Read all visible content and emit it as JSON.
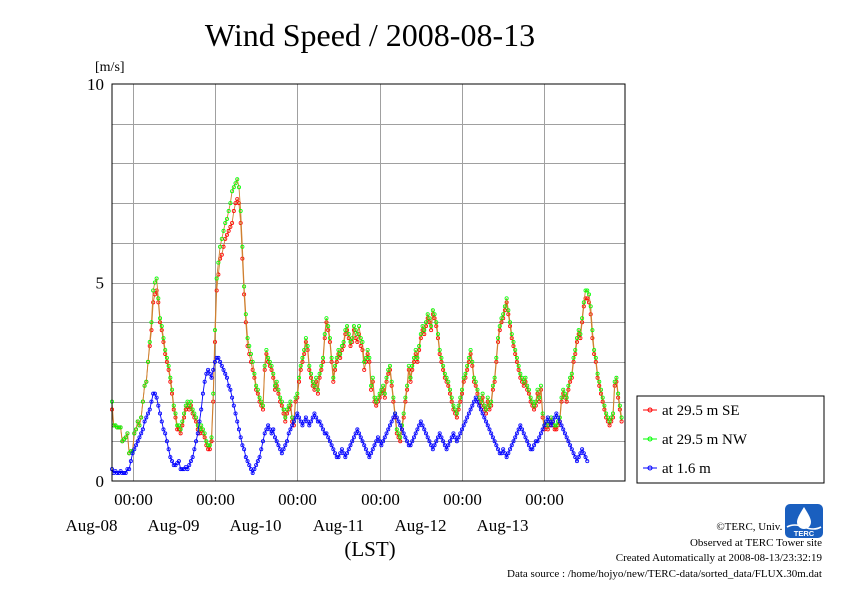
{
  "chart_data": {
    "type": "line",
    "title": "Wind Speed / 2008-08-13",
    "ylabel": "[m/s]",
    "xlabel": "(LST)",
    "ylim": [
      0,
      10
    ],
    "yticks": [
      "0",
      "5",
      "10"
    ],
    "x_start": "2008-08-07T18:00",
    "x_end": "2008-08-13T23:30",
    "sample_interval_hours": 0.5,
    "xtick_time_label": "00:00",
    "xticks": [
      "Aug-08",
      "Aug-09",
      "Aug-10",
      "Aug-11",
      "Aug-12",
      "Aug-13"
    ],
    "grid": true,
    "legend_position": "right",
    "series": [
      {
        "name": "at 29.5 m SE",
        "color": "#ff0000",
        "values": [
          1.8,
          1.4,
          1.4,
          1.35,
          1.35,
          1.35,
          1.0,
          1.05,
          1.1,
          1.2,
          0.7,
          0.75,
          0.75,
          1.2,
          1.3,
          1.5,
          1.4,
          1.6,
          2.0,
          2.4,
          2.5,
          3.0,
          3.4,
          3.8,
          4.5,
          4.7,
          4.8,
          4.5,
          4.0,
          3.8,
          3.5,
          3.2,
          3.0,
          2.8,
          2.5,
          2.2,
          1.8,
          1.6,
          1.3,
          1.3,
          1.2,
          1.4,
          1.6,
          1.8,
          1.9,
          1.8,
          1.9,
          1.7,
          1.6,
          1.5,
          1.3,
          1.2,
          1.3,
          1.2,
          1.1,
          0.9,
          0.8,
          0.8,
          1.0,
          2.0,
          3.5,
          4.8,
          5.2,
          5.6,
          5.7,
          5.9,
          6.1,
          6.2,
          6.3,
          6.4,
          6.5,
          6.8,
          7.0,
          7.1,
          7.0,
          6.5,
          5.6,
          4.7,
          4.0,
          3.4,
          3.2,
          3.0,
          2.8,
          2.6,
          2.3,
          2.2,
          2.0,
          1.9,
          1.8,
          2.8,
          3.2,
          3.0,
          2.9,
          2.8,
          2.6,
          2.3,
          2.4,
          2.2,
          2.0,
          1.9,
          1.7,
          1.5,
          1.7,
          1.8,
          1.9,
          1.5,
          1.4,
          2.0,
          2.1,
          2.5,
          2.8,
          3.0,
          3.2,
          3.5,
          3.3,
          2.8,
          2.6,
          2.4,
          2.3,
          2.5,
          2.2,
          2.6,
          2.8,
          3.0,
          3.6,
          4.0,
          3.8,
          3.5,
          3.0,
          2.5,
          2.8,
          3.0,
          3.2,
          3.1,
          3.3,
          3.4,
          3.7,
          3.8,
          3.6,
          3.4,
          3.5,
          3.8,
          3.6,
          3.5,
          3.7,
          3.4,
          3.3,
          2.8,
          3.0,
          3.2,
          3.0,
          2.3,
          2.5,
          2.0,
          1.9,
          2.0,
          2.1,
          2.2,
          2.3,
          2.1,
          2.5,
          2.7,
          2.8,
          2.4,
          2.0,
          1.6,
          1.2,
          1.1,
          1.0,
          1.3,
          1.6,
          2.0,
          2.3,
          2.8,
          2.5,
          2.8,
          3.0,
          3.2,
          3.0,
          3.3,
          3.6,
          3.8,
          3.7,
          3.9,
          4.1,
          4.0,
          3.8,
          4.2,
          4.1,
          3.9,
          3.6,
          3.2,
          3.0,
          2.8,
          2.6,
          2.5,
          2.4,
          2.2,
          2.0,
          1.8,
          1.7,
          1.6,
          1.8,
          2.0,
          2.2,
          2.5,
          2.6,
          2.8,
          3.0,
          3.2,
          2.9,
          2.5,
          2.4,
          2.2,
          2.0,
          1.9,
          2.1,
          1.8,
          1.7,
          2.0,
          1.8,
          1.9,
          2.3,
          2.5,
          3.0,
          3.5,
          3.8,
          4.0,
          4.1,
          4.3,
          4.5,
          4.2,
          3.9,
          3.6,
          3.4,
          3.2,
          3.0,
          2.8,
          2.6,
          2.5,
          2.4,
          2.5,
          2.3,
          2.2,
          2.0,
          1.9,
          1.8,
          1.9,
          2.2,
          2.0,
          2.3,
          1.6,
          1.3,
          1.4,
          1.3,
          1.4,
          1.5,
          1.4,
          1.3,
          1.3,
          1.4,
          1.5,
          2.0,
          2.2,
          2.1,
          2.0,
          2.3,
          2.5,
          2.6,
          3.0,
          3.2,
          3.5,
          3.7,
          3.6,
          4.0,
          4.4,
          4.6,
          4.6,
          4.5,
          4.2,
          3.6,
          3.2,
          3.0,
          2.6,
          2.4,
          2.2,
          2.0,
          1.8,
          1.6,
          1.5,
          1.4,
          1.5,
          1.6,
          2.4,
          2.5,
          2.1,
          1.8,
          1.5
        ]
      },
      {
        "name": "at 29.5 m NW",
        "color": "#00ff00",
        "values": [
          2.0,
          1.4,
          1.4,
          1.35,
          1.35,
          1.35,
          1.0,
          1.05,
          1.1,
          1.2,
          0.7,
          0.75,
          0.75,
          1.2,
          1.3,
          1.5,
          1.4,
          1.6,
          2.0,
          2.4,
          2.5,
          3.0,
          3.5,
          4.0,
          4.8,
          5.0,
          5.1,
          4.6,
          4.1,
          3.9,
          3.6,
          3.3,
          3.1,
          2.9,
          2.6,
          2.3,
          1.9,
          1.7,
          1.4,
          1.4,
          1.3,
          1.5,
          1.7,
          1.9,
          2.0,
          1.9,
          2.0,
          1.8,
          1.7,
          1.6,
          1.4,
          1.3,
          1.4,
          1.3,
          1.2,
          1.0,
          0.9,
          0.9,
          1.1,
          2.2,
          3.8,
          5.1,
          5.5,
          5.9,
          6.1,
          6.3,
          6.5,
          6.6,
          6.8,
          7.0,
          7.3,
          7.4,
          7.5,
          7.6,
          7.4,
          6.8,
          5.9,
          4.9,
          4.2,
          3.6,
          3.4,
          3.2,
          3.0,
          2.7,
          2.4,
          2.3,
          2.1,
          2.0,
          1.9,
          2.9,
          3.3,
          3.1,
          3.0,
          2.9,
          2.7,
          2.4,
          2.5,
          2.3,
          2.1,
          2.0,
          1.8,
          1.6,
          1.8,
          1.9,
          2.0,
          1.6,
          1.5,
          2.1,
          2.2,
          2.6,
          2.9,
          3.1,
          3.3,
          3.6,
          3.4,
          2.9,
          2.7,
          2.5,
          2.4,
          2.6,
          2.3,
          2.7,
          2.9,
          3.1,
          3.7,
          4.1,
          3.9,
          3.6,
          3.1,
          2.6,
          2.9,
          3.1,
          3.3,
          3.2,
          3.4,
          3.5,
          3.8,
          3.9,
          3.7,
          3.5,
          3.6,
          3.9,
          3.8,
          3.7,
          3.9,
          3.6,
          3.5,
          3.0,
          3.1,
          3.3,
          3.1,
          2.4,
          2.6,
          2.1,
          2.0,
          2.1,
          2.2,
          2.3,
          2.4,
          2.2,
          2.6,
          2.8,
          2.9,
          2.5,
          2.1,
          1.7,
          1.3,
          1.2,
          1.1,
          1.4,
          1.7,
          2.1,
          2.4,
          2.9,
          2.6,
          2.9,
          3.1,
          3.3,
          3.1,
          3.4,
          3.7,
          3.9,
          3.8,
          4.0,
          4.2,
          4.1,
          3.9,
          4.3,
          4.2,
          4.0,
          3.7,
          3.3,
          3.1,
          2.9,
          2.7,
          2.6,
          2.5,
          2.3,
          2.1,
          1.9,
          1.8,
          1.7,
          1.9,
          2.1,
          2.3,
          2.6,
          2.7,
          2.9,
          3.1,
          3.3,
          3.0,
          2.6,
          2.5,
          2.3,
          2.1,
          2.0,
          2.2,
          1.9,
          1.8,
          2.1,
          1.9,
          2.0,
          2.4,
          2.6,
          3.1,
          3.6,
          3.9,
          4.1,
          4.2,
          4.4,
          4.6,
          4.3,
          4.0,
          3.7,
          3.5,
          3.3,
          3.1,
          2.9,
          2.7,
          2.6,
          2.5,
          2.6,
          2.4,
          2.3,
          2.1,
          2.0,
          1.9,
          2.0,
          2.3,
          2.1,
          2.4,
          1.7,
          1.4,
          1.5,
          1.4,
          1.5,
          1.6,
          1.5,
          1.4,
          1.4,
          1.5,
          1.6,
          2.1,
          2.3,
          2.2,
          2.1,
          2.4,
          2.6,
          2.7,
          3.1,
          3.3,
          3.6,
          3.8,
          3.7,
          4.1,
          4.5,
          4.8,
          4.8,
          4.7,
          4.4,
          3.8,
          3.3,
          3.1,
          2.7,
          2.5,
          2.3,
          2.1,
          1.9,
          1.7,
          1.6,
          1.5,
          1.6,
          1.7,
          2.5,
          2.6,
          2.2,
          1.9,
          1.6
        ]
      },
      {
        "name": "at 1.6 m",
        "color": "#0000ff",
        "values": [
          0.3,
          0.2,
          0.25,
          0.2,
          0.2,
          0.25,
          0.2,
          0.2,
          0.2,
          0.3,
          0.3,
          0.5,
          0.7,
          0.8,
          0.9,
          1.0,
          1.1,
          1.2,
          1.3,
          1.5,
          1.6,
          1.7,
          1.8,
          2.0,
          2.2,
          2.2,
          2.1,
          1.9,
          1.7,
          1.5,
          1.3,
          1.2,
          1.0,
          0.8,
          0.6,
          0.5,
          0.4,
          0.4,
          0.45,
          0.5,
          0.3,
          0.3,
          0.3,
          0.35,
          0.3,
          0.4,
          0.5,
          0.6,
          0.8,
          1.0,
          1.2,
          1.5,
          1.8,
          2.2,
          2.5,
          2.7,
          2.8,
          2.7,
          2.6,
          2.8,
          3.0,
          3.1,
          3.1,
          3.0,
          2.9,
          2.8,
          2.7,
          2.6,
          2.4,
          2.3,
          2.1,
          1.9,
          1.7,
          1.5,
          1.3,
          1.1,
          0.9,
          0.8,
          0.6,
          0.5,
          0.4,
          0.3,
          0.2,
          0.3,
          0.4,
          0.5,
          0.6,
          0.8,
          1.0,
          1.2,
          1.3,
          1.4,
          1.3,
          1.2,
          1.3,
          1.1,
          1.0,
          0.9,
          0.8,
          0.7,
          0.8,
          0.9,
          1.0,
          1.2,
          1.3,
          1.4,
          1.5,
          1.6,
          1.7,
          1.6,
          1.5,
          1.4,
          1.5,
          1.6,
          1.5,
          1.4,
          1.5,
          1.6,
          1.7,
          1.6,
          1.5,
          1.5,
          1.4,
          1.3,
          1.2,
          1.2,
          1.1,
          1.0,
          0.9,
          0.8,
          0.7,
          0.6,
          0.6,
          0.7,
          0.8,
          0.7,
          0.6,
          0.7,
          0.8,
          0.9,
          1.0,
          1.1,
          1.2,
          1.3,
          1.2,
          1.1,
          1.0,
          0.9,
          0.8,
          0.7,
          0.6,
          0.7,
          0.8,
          0.9,
          1.0,
          1.1,
          1.0,
          0.9,
          1.0,
          1.1,
          1.2,
          1.3,
          1.4,
          1.5,
          1.6,
          1.7,
          1.6,
          1.5,
          1.4,
          1.3,
          1.2,
          1.1,
          1.0,
          0.9,
          0.9,
          1.0,
          1.1,
          1.2,
          1.3,
          1.4,
          1.5,
          1.4,
          1.3,
          1.2,
          1.1,
          1.0,
          0.9,
          0.8,
          0.9,
          1.0,
          1.1,
          1.2,
          1.1,
          1.0,
          0.9,
          0.8,
          0.9,
          1.0,
          1.1,
          1.2,
          1.1,
          1.0,
          1.1,
          1.2,
          1.3,
          1.4,
          1.5,
          1.6,
          1.7,
          1.8,
          1.9,
          2.0,
          2.1,
          2.0,
          1.9,
          1.8,
          1.7,
          1.6,
          1.5,
          1.4,
          1.3,
          1.2,
          1.1,
          1.0,
          0.9,
          0.8,
          0.7,
          0.7,
          0.8,
          0.7,
          0.6,
          0.7,
          0.8,
          0.9,
          1.0,
          1.1,
          1.2,
          1.3,
          1.4,
          1.3,
          1.2,
          1.1,
          1.0,
          0.9,
          0.8,
          0.8,
          0.9,
          1.0,
          1.0,
          1.1,
          1.2,
          1.3,
          1.4,
          1.5,
          1.6,
          1.5,
          1.4,
          1.5,
          1.6,
          1.7,
          1.6,
          1.5,
          1.4,
          1.3,
          1.2,
          1.1,
          1.0,
          0.9,
          0.8,
          0.7,
          0.6,
          0.5,
          0.6,
          0.7,
          0.8,
          0.7,
          0.6,
          0.5
        ]
      }
    ]
  },
  "footer": {
    "copyright": "©TERC, Univ. Tsukuba",
    "observed": "Observed at TERC Tower site",
    "created": "Created Automatically at 2008-08-13/23:32:19",
    "source": "Data source : /home/hojyo/new/TERC-data/sorted_data/FLUX.30m.dat"
  },
  "logo": {
    "text": "TERC",
    "color": "#1a5fbf",
    "icon": "terc-logo-icon"
  }
}
